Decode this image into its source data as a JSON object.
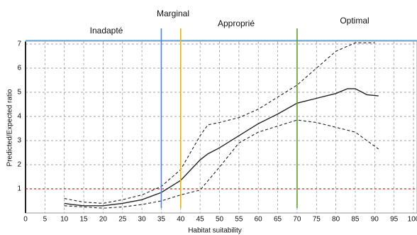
{
  "chart_data": {
    "type": "line",
    "xlabel": "Habitat suitability",
    "ylabel": "Predicted/Expected ratio",
    "xlim": [
      0,
      100
    ],
    "ylim": [
      0,
      7.1
    ],
    "xticks": [
      0,
      5,
      10,
      15,
      20,
      25,
      30,
      35,
      40,
      45,
      50,
      55,
      60,
      65,
      70,
      75,
      80,
      85,
      90,
      95,
      100
    ],
    "yticks": [
      1,
      2,
      3,
      4,
      5,
      6,
      7
    ],
    "grid": true,
    "series": [
      {
        "color": "#222222",
        "dash": false,
        "x": [
          10,
          12,
          15,
          20,
          25,
          30,
          35,
          40,
          45,
          47,
          50,
          55,
          60,
          65,
          70,
          75,
          80,
          83,
          85,
          88,
          91
        ],
        "values": [
          0.4,
          0.35,
          0.3,
          0.3,
          0.4,
          0.55,
          0.85,
          1.35,
          2.2,
          2.45,
          2.7,
          3.2,
          3.7,
          4.1,
          4.55,
          4.75,
          4.95,
          5.15,
          5.15,
          4.9,
          4.85
        ]
      },
      {
        "color": "#222222",
        "dash": true,
        "x": [
          10,
          15,
          20,
          25,
          30,
          35,
          40,
          45,
          47,
          50,
          55,
          60,
          65,
          70,
          75,
          80,
          85,
          90
        ],
        "values": [
          0.6,
          0.45,
          0.4,
          0.55,
          0.75,
          1.1,
          1.8,
          3.2,
          3.65,
          3.75,
          3.95,
          4.3,
          4.8,
          5.3,
          6.0,
          6.7,
          7.05,
          7.05
        ]
      },
      {
        "color": "#222222",
        "dash": true,
        "x": [
          10,
          15,
          20,
          25,
          30,
          35,
          40,
          45,
          50,
          55,
          60,
          65,
          70,
          75,
          80,
          85,
          88,
          91
        ],
        "values": [
          0.3,
          0.25,
          0.2,
          0.25,
          0.35,
          0.5,
          0.75,
          0.95,
          1.9,
          2.9,
          3.35,
          3.6,
          3.85,
          3.75,
          3.55,
          3.35,
          3.0,
          2.65
        ]
      }
    ],
    "hlines": [
      {
        "value": 1,
        "color": "#e02020"
      }
    ],
    "vlines": [
      {
        "value": 35,
        "color": "#4a86d8"
      },
      {
        "value": 40,
        "color": "#f0b400"
      },
      {
        "value": 70,
        "color": "#5aa02c"
      }
    ],
    "annotations": [
      "Inadapté",
      "Marginal",
      "Approprié",
      "Optimal"
    ]
  }
}
